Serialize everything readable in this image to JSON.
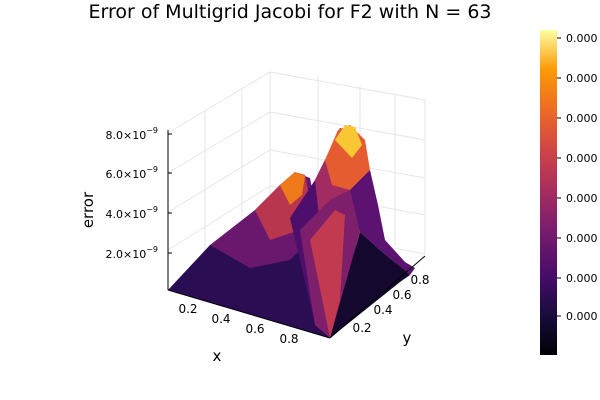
{
  "chart_data": {
    "type": "surface",
    "title": "Error of Multigrid Jacobi for F2 with N = 63",
    "xlabel": "x",
    "ylabel": "y",
    "zlabel": "error",
    "x_ticks": [
      "0.2",
      "0.4",
      "0.6",
      "0.8"
    ],
    "y_ticks": [
      "0.2",
      "0.4",
      "0.6",
      "0.8"
    ],
    "z_ticks": [
      {
        "mantissa": "2.0×10",
        "exp": "−9"
      },
      {
        "mantissa": "4.0×10",
        "exp": "−9"
      },
      {
        "mantissa": "6.0×10",
        "exp": "−9"
      },
      {
        "mantissa": "8.0×10",
        "exp": "−9"
      }
    ],
    "z_range": [
      0,
      8.5e-09
    ],
    "colorbar": {
      "colormap": "inferno",
      "tick_labels": [
        "0.000",
        "0.000",
        "0.000",
        "0.000",
        "0.000",
        "0.000",
        "0.000",
        "0.000"
      ]
    },
    "grid": true,
    "description_of_surface": "Two peaks along x≈y diagonal ridge; higher peak ~8.2e-9 near (0.75,0.75), secondary ~6.5e-9 near (0.35,0.35)"
  }
}
